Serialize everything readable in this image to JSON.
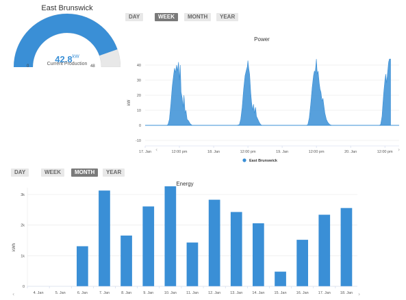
{
  "gauge": {
    "title": "East Brunswick",
    "value": "42.8",
    "value_num": 42.8,
    "unit": "kW",
    "subtitle": "Current Production",
    "min_label": "0",
    "max_label": "48",
    "min": 0,
    "max": 48,
    "fill_color": "#3a8fd6",
    "track_color": "#e8e8e8"
  },
  "power_controls": {
    "buttons": [
      {
        "label": "DAY",
        "active": false
      },
      {
        "label": "WEEK",
        "active": true
      },
      {
        "label": "MONTH",
        "active": false
      },
      {
        "label": "YEAR",
        "active": false
      }
    ]
  },
  "energy_controls": {
    "buttons": [
      {
        "label": "DAY",
        "active": false
      },
      {
        "label": "WEEK",
        "active": false
      },
      {
        "label": "MONTH",
        "active": true
      },
      {
        "label": "YEAR",
        "active": false
      }
    ]
  },
  "chart_data": [
    {
      "type": "area",
      "title": "Power",
      "ylabel": "kW",
      "ylim": [
        -10,
        40
      ],
      "yticks": [
        -10,
        0,
        10,
        20,
        30,
        40
      ],
      "x_tick_labels": [
        "17. Jan",
        "12:00 pm",
        "18. Jan",
        "12:00 pm",
        "19. Jan",
        "12:00 pm",
        "20. Jan",
        "12:00 pm"
      ],
      "x_tick_hours": [
        0,
        12,
        24,
        36,
        48,
        60,
        72,
        84
      ],
      "x_range_hours": [
        0,
        89
      ],
      "legend": "East Brunswick",
      "legend_position": "bottom-center",
      "color": "#3a8fd6",
      "grid": true,
      "series": [
        {
          "name": "East Brunswick",
          "points": [
            [
              0,
              0
            ],
            [
              7.5,
              0
            ],
            [
              8,
              0.5
            ],
            [
              8.5,
              4
            ],
            [
              9,
              14
            ],
            [
              9.5,
              26
            ],
            [
              10,
              34
            ],
            [
              10.3,
              38
            ],
            [
              10.6,
              35
            ],
            [
              11,
              40
            ],
            [
              11.3,
              36
            ],
            [
              11.7,
              42
            ],
            [
              12,
              30
            ],
            [
              12.3,
              40
            ],
            [
              12.6,
              22
            ],
            [
              13,
              18
            ],
            [
              13.3,
              12
            ],
            [
              13.6,
              20
            ],
            [
              14,
              8
            ],
            [
              14.3,
              10
            ],
            [
              14.7,
              4
            ],
            [
              15.2,
              3
            ],
            [
              15.8,
              1
            ],
            [
              16.5,
              0
            ],
            [
              32,
              0
            ],
            [
              33,
              0.5
            ],
            [
              33.5,
              4
            ],
            [
              34,
              12
            ],
            [
              34.5,
              24
            ],
            [
              35,
              33
            ],
            [
              35.5,
              37
            ],
            [
              35.8,
              39
            ],
            [
              36,
              43
            ],
            [
              36.3,
              38
            ],
            [
              36.6,
              34
            ],
            [
              37,
              22
            ],
            [
              37.3,
              15
            ],
            [
              37.7,
              10
            ],
            [
              38,
              14
            ],
            [
              38.3,
              8
            ],
            [
              38.7,
              12
            ],
            [
              39,
              6
            ],
            [
              39.5,
              4
            ],
            [
              40,
              2
            ],
            [
              40.5,
              0.5
            ],
            [
              41,
              0
            ],
            [
              56.5,
              0
            ],
            [
              57,
              0.5
            ],
            [
              57.5,
              5
            ],
            [
              58,
              14
            ],
            [
              58.5,
              25
            ],
            [
              59,
              33
            ],
            [
              59.3,
              36
            ],
            [
              59.6,
              35
            ],
            [
              60,
              44
            ],
            [
              60.3,
              34
            ],
            [
              60.6,
              36
            ],
            [
              61,
              28
            ],
            [
              61.3,
              24
            ],
            [
              61.6,
              22
            ],
            [
              62,
              16
            ],
            [
              62.3,
              18
            ],
            [
              62.7,
              12
            ],
            [
              63,
              8
            ],
            [
              63.5,
              4
            ],
            [
              64,
              2
            ],
            [
              64.7,
              0.5
            ],
            [
              65.5,
              0
            ],
            [
              82,
              0
            ],
            [
              82.5,
              0.5
            ],
            [
              83,
              6
            ],
            [
              83.3,
              14
            ],
            [
              83.6,
              22
            ],
            [
              84,
              30
            ],
            [
              84.3,
              34
            ],
            [
              84.6,
              28
            ],
            [
              85,
              36
            ],
            [
              85.3,
              42
            ],
            [
              85.6,
              44
            ],
            [
              86,
              44
            ],
            [
              86,
              0
            ]
          ]
        }
      ]
    },
    {
      "type": "bar",
      "title": "Energy",
      "ylabel": "kWh",
      "ylim": [
        0,
        3000
      ],
      "yticks": [
        0,
        1000,
        2000,
        3000
      ],
      "ytick_labels": [
        "0",
        "1k",
        "2k",
        "3k"
      ],
      "categories": [
        "4. Jan",
        "5. Jan",
        "6. Jan",
        "7. Jan",
        "8. Jan",
        "9. Jan",
        "10. Jan",
        "11. Jan",
        "12. Jan",
        "13. Jan",
        "14. Jan",
        "15. Jan",
        "16. Jan",
        "17. Jan",
        "18. Jan"
      ],
      "values": [
        0,
        0,
        1310,
        3130,
        1660,
        2610,
        3300,
        1430,
        2830,
        2430,
        2060,
        480,
        1520,
        2340,
        2560
      ],
      "color": "#3a8fd6",
      "grid": true
    }
  ]
}
